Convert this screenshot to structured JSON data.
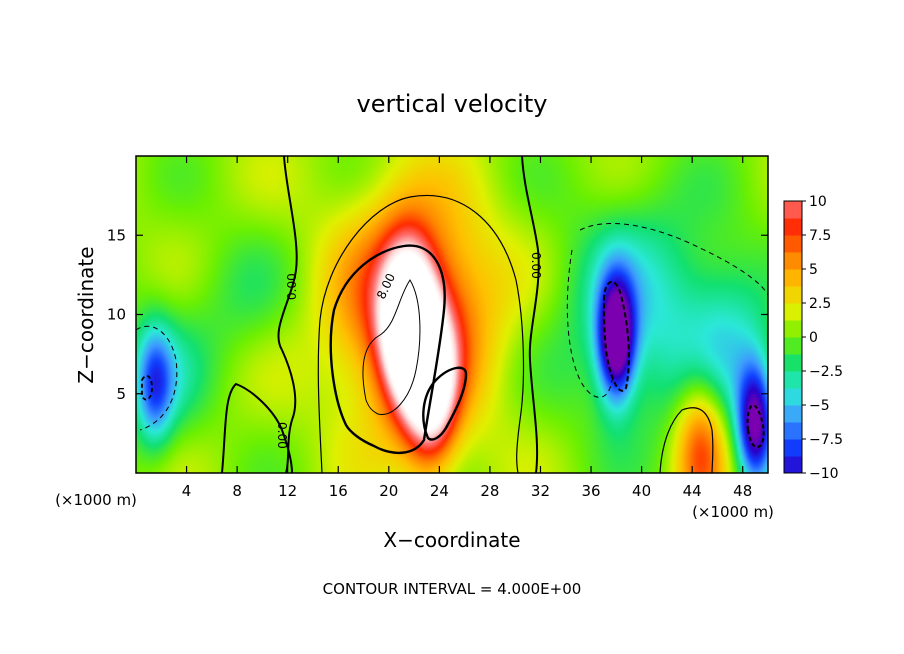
{
  "chart_data": {
    "type": "heatmap",
    "title": "vertical velocity",
    "xlabel": "X−coordinate",
    "ylabel": "Z−coordinate",
    "x_unit_left": "(×1000 m)",
    "x_unit_right": "(×1000 m)",
    "footer": "CONTOUR INTERVAL = 4.000E+00",
    "xlim": [
      0,
      50
    ],
    "ylim": [
      0,
      20
    ],
    "x_ticks": [
      4,
      8,
      12,
      16,
      20,
      24,
      28,
      32,
      36,
      40,
      44,
      48
    ],
    "x_tick_labels": [
      "4",
      "8",
      "12",
      "16",
      "20",
      "24",
      "28",
      "32",
      "36",
      "40",
      "44",
      "48"
    ],
    "y_ticks": [
      5,
      10,
      15
    ],
    "y_tick_labels": [
      "5",
      "10",
      "15"
    ],
    "colorbar": {
      "range": [
        -10,
        10
      ],
      "ticks": [
        10,
        7.5,
        5,
        2.5,
        0,
        -2.5,
        -5,
        -7.5,
        -10
      ],
      "tick_labels": [
        "10",
        "7.5",
        "5",
        "2.5",
        "0",
        "−2.5",
        "−5",
        "−7.5",
        "−10"
      ],
      "colors": [
        "#7a00b0",
        "#2a00c8",
        "#1040ff",
        "#3d9aff",
        "#2be8d8",
        "#12e070",
        "#6cf000",
        "#e0f000",
        "#ffc000",
        "#ff8000",
        "#ff2a00",
        "#ff7070",
        "#ffd6d6",
        "#ffffff"
      ]
    },
    "contour_labels": [
      "0.00",
      "8.00",
      "0.00",
      "0.00"
    ],
    "features": [
      {
        "kind": "updraft",
        "x": 21.5,
        "z": 9.5,
        "peak": 18
      },
      {
        "kind": "updraft",
        "x": 23.3,
        "z": 5.5,
        "peak": 14
      },
      {
        "kind": "updraft",
        "x": 44.7,
        "z": 1.8,
        "peak": 7
      },
      {
        "kind": "downdraft",
        "x": 38.0,
        "z": 8.5,
        "peak": -14
      },
      {
        "kind": "downdraft",
        "x": 49.0,
        "z": 3.0,
        "peak": -12
      },
      {
        "kind": "downdraft",
        "x": 1.5,
        "z": 5.5,
        "peak": -6
      }
    ]
  }
}
